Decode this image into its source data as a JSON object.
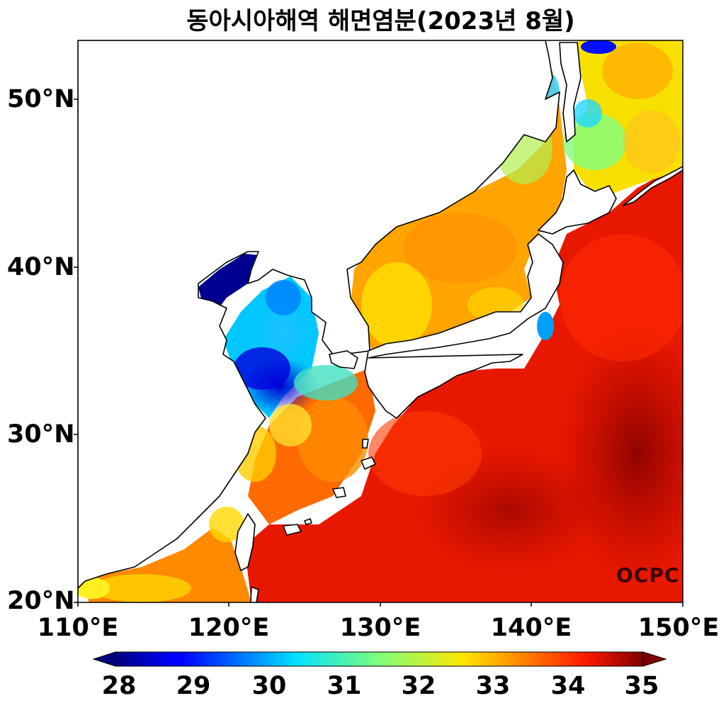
{
  "title": "동아시아해역 해면염분(2023년 8월)",
  "watermark": "OCPC",
  "map": {
    "region": "East Asian Seas",
    "lon_range": [
      110,
      150
    ],
    "lat_range": [
      20,
      53.5
    ],
    "y_ticks": [
      "50°N",
      "40°N",
      "30°N",
      "20°N"
    ],
    "x_ticks": [
      "110°E",
      "120°E",
      "130°E",
      "140°E",
      "150°E"
    ]
  },
  "colorbar": {
    "colormap": "jet",
    "range": [
      28,
      35
    ],
    "extend": "both",
    "labels": [
      "28",
      "29",
      "30",
      "31",
      "32",
      "33",
      "34",
      "35"
    ]
  }
}
